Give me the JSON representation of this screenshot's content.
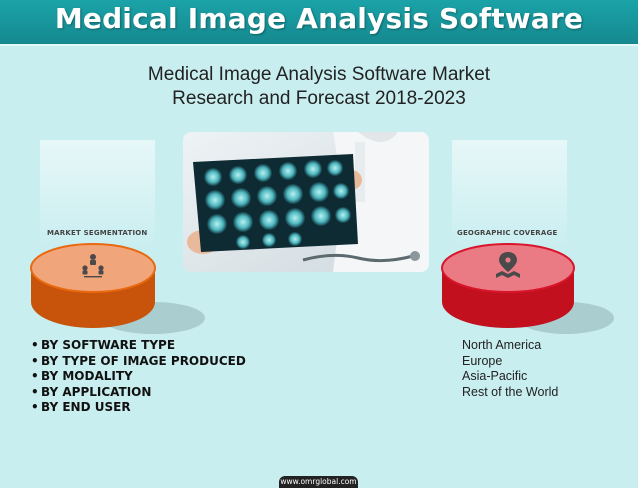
{
  "banner": {
    "title": "Medical Image Analysis Software"
  },
  "subtitle": {
    "line1": "Medical Image Analysis Software Market",
    "line2": "Research and Forecast 2018-2023"
  },
  "photo": {
    "icon": "doctor-viewing-mri-scan-image"
  },
  "left_segment": {
    "title": "MARKET SEGMENTATION",
    "icon": "people-hierarchy-icon",
    "color": "#e8690f",
    "items": [
      {
        "bullet": "•",
        "label": "BY SOFTWARE TYPE"
      },
      {
        "bullet": "•",
        "label": "BY TYPE OF IMAGE PRODUCED"
      },
      {
        "bullet": "•",
        "label": "BY MODALITY"
      },
      {
        "bullet": "•",
        "label": "BY APPLICATION"
      },
      {
        "bullet": "•",
        "label": "BY END USER"
      }
    ]
  },
  "right_segment": {
    "title": "GEOGRAPHIC COVERAGE",
    "icon": "map-pin-icon",
    "color": "#d9152c",
    "items": [
      "North America",
      "Europe",
      "Asia-Pacific",
      "Rest of the World"
    ]
  },
  "footer": {
    "text": "www.omrglobal.com"
  },
  "colors": {
    "background": "#c9eef0",
    "banner": "#1aa3a8"
  }
}
